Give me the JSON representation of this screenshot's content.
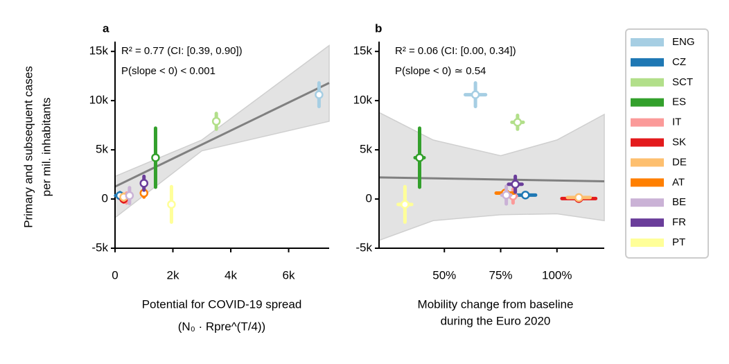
{
  "chart_data": [
    {
      "type": "scatter",
      "panel": "a",
      "annotations": [
        "R² = 0.77 (CI: [0.39, 0.90])",
        "P(slope < 0) < 0.001"
      ],
      "xlabel": [
        "Potential for COVID-19 spread",
        "(N₀ · Rpre^(T/4))"
      ],
      "ylabel": [
        "Primary and subsequent cases",
        "per mil. inhabitants"
      ],
      "categories": [
        "ENG",
        "CZ",
        "SCT",
        "ES",
        "IT",
        "SK",
        "DE",
        "AT",
        "BE",
        "FR",
        "PT"
      ],
      "colors": [
        "#a6cee3",
        "#1f78b4",
        "#b2df8a",
        "#33a02c",
        "#fb9a99",
        "#e31a1c",
        "#fdbf6f",
        "#ff7f00",
        "#cab2d6",
        "#6a3d9a",
        "#ffff99"
      ],
      "x": [
        7050,
        170,
        3500,
        1400,
        400,
        300,
        300,
        1000,
        500,
        1000,
        1950
      ],
      "xerr": [
        80,
        150,
        80,
        60,
        60,
        60,
        60,
        60,
        60,
        60,
        60
      ],
      "values": [
        10600,
        350,
        7900,
        4200,
        100,
        0,
        200,
        600,
        350,
        1600,
        -550
      ],
      "yerr": [
        1200,
        300,
        800,
        3000,
        500,
        300,
        300,
        400,
        800,
        700,
        1800
      ],
      "fit": {
        "x": [
          0,
          7400
        ],
        "y": [
          1260,
          11800
        ]
      },
      "band": {
        "x": [
          0,
          3000,
          7400
        ],
        "upper": [
          2300,
          6000,
          15600
        ],
        "lower": [
          -1900,
          4900,
          7900
        ]
      },
      "xlim": [
        0,
        7400
      ],
      "ylim": [
        -5000,
        16000
      ],
      "xticks": [
        0,
        {
          "value": 2000,
          "label": "2k"
        },
        {
          "value": 4000,
          "label": "4k"
        },
        {
          "value": 6000,
          "label": "6k"
        }
      ],
      "yticks": [
        {
          "value": -5000,
          "label": "-5k"
        },
        0,
        {
          "value": 5000,
          "label": "5k"
        },
        {
          "value": 10000,
          "label": "10k"
        },
        {
          "value": 15000,
          "label": "15k"
        }
      ],
      "legend": "right"
    },
    {
      "type": "scatter",
      "panel": "b",
      "annotations": [
        "R² = 0.06 (CI: [0.00, 0.34])",
        "P(slope < 0) ≃ 0.54"
      ],
      "xlabel": [
        "Mobility change from baseline",
        "during the Euro 2020"
      ],
      "x": [
        63.8,
        86,
        82.5,
        39,
        80.5,
        109.7,
        109.7,
        77,
        77.5,
        81.5,
        32.5
      ],
      "xerr": [
        4.5,
        4.5,
        2.5,
        2,
        1.5,
        7.5,
        5,
        4,
        2,
        3,
        3
      ],
      "values": [
        10600,
        400,
        7800,
        4200,
        300,
        50,
        150,
        600,
        400,
        1500,
        -550
      ],
      "yerr": [
        1200,
        200,
        700,
        3000,
        700,
        200,
        200,
        300,
        900,
        800,
        1800
      ],
      "fit": {
        "x": [
          21,
          121
        ],
        "y": [
          2200,
          1800
        ]
      },
      "band": {
        "x": [
          21,
          45,
          75,
          100,
          121
        ],
        "upper": [
          8800,
          6000,
          4400,
          6000,
          8600
        ],
        "lower": [
          -4200,
          -2200,
          -1600,
          -1500,
          -2200
        ]
      },
      "xlim": [
        21,
        121
      ],
      "ylim": [
        -5000,
        16000
      ],
      "xticks": [
        {
          "value": 50,
          "label": "50%"
        },
        {
          "value": 75,
          "label": "75%"
        },
        {
          "value": 100,
          "label": "100%"
        }
      ],
      "yticks": [
        {
          "value": -5000,
          "label": "-5k"
        },
        0,
        {
          "value": 5000,
          "label": "5k"
        },
        {
          "value": 10000,
          "label": "10k"
        },
        {
          "value": 15000,
          "label": "15k"
        }
      ]
    }
  ]
}
